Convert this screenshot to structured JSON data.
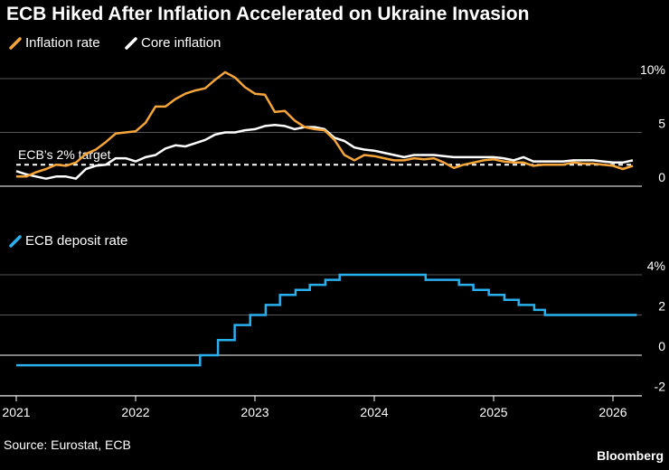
{
  "chart_data": [
    {
      "type": "line",
      "title": "ECB Hiked After Inflation Accelerated on Ukraine Invasion",
      "unit": "%",
      "ylim": [
        0,
        10
      ],
      "ytick_labels": [
        "10%",
        "5",
        "0"
      ],
      "ytick_values": [
        10,
        5,
        0
      ],
      "annotation": "ECB’s 2% target",
      "target_value": 2,
      "series": [
        {
          "name": "Inflation rate",
          "color": "#f5a53a",
          "x": [
            2021.0,
            2021.083,
            2021.167,
            2021.25,
            2021.333,
            2021.417,
            2021.5,
            2021.583,
            2021.667,
            2021.75,
            2021.833,
            2021.917,
            2022.0,
            2022.083,
            2022.167,
            2022.25,
            2022.333,
            2022.417,
            2022.5,
            2022.583,
            2022.667,
            2022.75,
            2022.833,
            2022.917,
            2023.0,
            2023.083,
            2023.167,
            2023.25,
            2023.333,
            2023.417,
            2023.5,
            2023.583,
            2023.667,
            2023.75,
            2023.833,
            2023.917,
            2024.0,
            2024.083,
            2024.167,
            2024.25,
            2024.333,
            2024.417,
            2024.5,
            2024.583,
            2024.667,
            2024.75,
            2024.833,
            2024.917,
            2025.0,
            2025.083,
            2025.167,
            2025.25,
            2025.333,
            2025.417,
            2025.5,
            2025.583,
            2025.667,
            2025.75,
            2025.833,
            2025.917,
            2026.0,
            2026.083,
            2026.167
          ],
          "values": [
            0.9,
            0.9,
            1.3,
            1.6,
            2.0,
            1.9,
            2.2,
            3.0,
            3.4,
            4.1,
            4.9,
            5.0,
            5.1,
            5.9,
            7.4,
            7.4,
            8.1,
            8.6,
            8.9,
            9.1,
            9.9,
            10.6,
            10.1,
            9.2,
            8.6,
            8.5,
            6.9,
            7.0,
            6.1,
            5.5,
            5.3,
            5.2,
            4.3,
            2.9,
            2.4,
            2.9,
            2.8,
            2.6,
            2.4,
            2.4,
            2.6,
            2.5,
            2.6,
            2.2,
            1.7,
            2.0,
            2.2,
            2.4,
            2.5,
            2.3,
            2.2,
            2.2,
            1.9,
            2.0,
            2.0,
            2.0,
            2.2,
            2.1,
            2.1,
            2.0,
            1.9,
            1.6,
            1.9
          ]
        },
        {
          "name": "Core inflation",
          "color": "#ffffff",
          "x": [
            2021.0,
            2021.083,
            2021.167,
            2021.25,
            2021.333,
            2021.417,
            2021.5,
            2021.583,
            2021.667,
            2021.75,
            2021.833,
            2021.917,
            2022.0,
            2022.083,
            2022.167,
            2022.25,
            2022.333,
            2022.417,
            2022.5,
            2022.583,
            2022.667,
            2022.75,
            2022.833,
            2022.917,
            2023.0,
            2023.083,
            2023.167,
            2023.25,
            2023.333,
            2023.417,
            2023.5,
            2023.583,
            2023.667,
            2023.75,
            2023.833,
            2023.917,
            2024.0,
            2024.083,
            2024.167,
            2024.25,
            2024.333,
            2024.417,
            2024.5,
            2024.583,
            2024.667,
            2024.75,
            2024.833,
            2024.917,
            2025.0,
            2025.083,
            2025.167,
            2025.25,
            2025.333,
            2025.417,
            2025.5,
            2025.583,
            2025.667,
            2025.75,
            2025.833,
            2025.917,
            2026.0,
            2026.083,
            2026.167
          ],
          "values": [
            1.4,
            1.1,
            0.9,
            0.7,
            0.9,
            0.9,
            0.7,
            1.6,
            1.9,
            2.0,
            2.6,
            2.6,
            2.3,
            2.7,
            2.9,
            3.5,
            3.8,
            3.7,
            4.0,
            4.3,
            4.8,
            5.0,
            5.0,
            5.2,
            5.3,
            5.6,
            5.7,
            5.6,
            5.3,
            5.5,
            5.5,
            5.3,
            4.5,
            4.2,
            3.6,
            3.4,
            3.3,
            3.1,
            2.9,
            2.7,
            2.9,
            2.9,
            2.9,
            2.8,
            2.7,
            2.7,
            2.7,
            2.7,
            2.7,
            2.6,
            2.4,
            2.7,
            2.3,
            2.3,
            2.3,
            2.3,
            2.4,
            2.4,
            2.4,
            2.3,
            2.2,
            2.2,
            2.4
          ]
        }
      ]
    },
    {
      "type": "line",
      "step": true,
      "unit": "%",
      "ylim": [
        -2,
        4
      ],
      "ytick_labels": [
        "4%",
        "2",
        "0",
        "-2"
      ],
      "ytick_values": [
        4,
        2,
        0,
        -2
      ],
      "xlabel_ticks": [
        "2021",
        "2022",
        "2023",
        "2024",
        "2025",
        "2026"
      ],
      "xtick_values": [
        2021,
        2022,
        2023,
        2024,
        2025,
        2026
      ],
      "series": [
        {
          "name": "ECB deposit rate",
          "color": "#2bb0ee",
          "x": [
            2021.0,
            2022.54,
            2022.69,
            2022.83,
            2022.96,
            2023.09,
            2023.21,
            2023.34,
            2023.46,
            2023.59,
            2023.71,
            2024.43,
            2024.71,
            2024.83,
            2024.96,
            2025.09,
            2025.21,
            2025.34,
            2025.43,
            2026.2
          ],
          "values": [
            -0.5,
            0.0,
            0.75,
            1.5,
            2.0,
            2.5,
            3.0,
            3.25,
            3.5,
            3.75,
            4.0,
            3.75,
            3.5,
            3.25,
            3.0,
            2.75,
            2.5,
            2.25,
            2.0,
            2.0
          ]
        }
      ]
    }
  ],
  "source": "Source: Eurostat, ECB",
  "brand": "Bloomberg"
}
